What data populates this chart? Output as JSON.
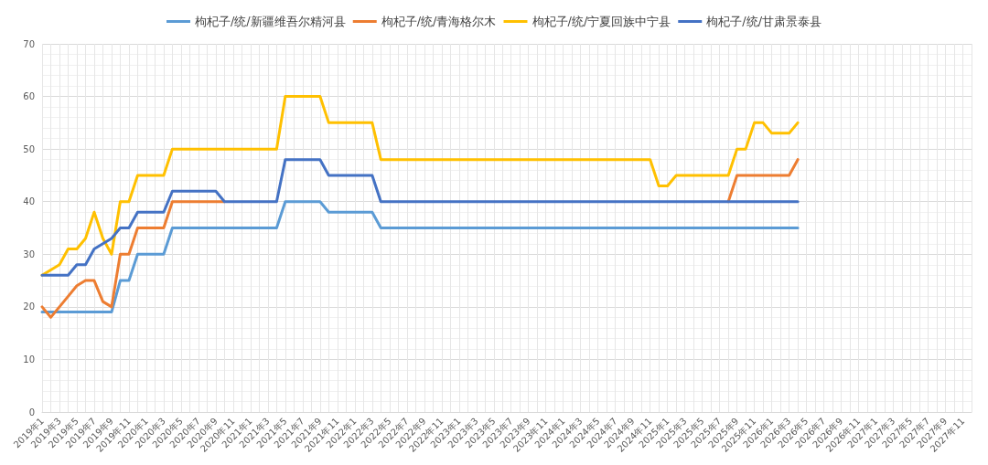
{
  "chart_data": {
    "type": "line",
    "categories": [
      "2019年1",
      null,
      "2019年3",
      null,
      "2019年5",
      null,
      "2019年7",
      null,
      "2019年9",
      null,
      "2019年11",
      null,
      "2020年1",
      null,
      "2020年3",
      null,
      "2020年5",
      null,
      "2020年7",
      null,
      "2020年9",
      null,
      "2020年11",
      null,
      "2021年1",
      null,
      "2021年3",
      null,
      "2021年5",
      null,
      "2021年7",
      null,
      "2021年9",
      null,
      "2021年11",
      null,
      "2022年1",
      null,
      "2022年3",
      null,
      "2022年5",
      null,
      "2022年7",
      null,
      "2022年9",
      null,
      "2022年11",
      null,
      "2023年1",
      null,
      "2023年3",
      null,
      "2023年5",
      null,
      "2023年7",
      null,
      "2023年9",
      null,
      "2023年11",
      null,
      "2024年1",
      null,
      "2024年3",
      null,
      "2024年5",
      null,
      "2024年7",
      null,
      "2024年9",
      null,
      "2024年11",
      null,
      "2025年1",
      null,
      "2025年3",
      null,
      "2025年5",
      null,
      "2025年7",
      null,
      "2025年9",
      null,
      "2025年11",
      null,
      "2026年1",
      null,
      "2026年3",
      null,
      "2026年5",
      null,
      "2026年7",
      null,
      "2026年9",
      null,
      "2026年11",
      null,
      "2027年1",
      null,
      "2027年3",
      null,
      "2027年5",
      null,
      "2027年7",
      null,
      "2027年9",
      null,
      "2027年11",
      null
    ],
    "series": [
      {
        "name": "枸杞子/统/新疆维吾尔精河县",
        "color": "#5b9bd5",
        "values": [
          19,
          19,
          19,
          19,
          19,
          19,
          19,
          19,
          19,
          25,
          25,
          30,
          30,
          30,
          30,
          35,
          35,
          35,
          35,
          35,
          35,
          35,
          35,
          35,
          35,
          35,
          35,
          35,
          40,
          40,
          40,
          40,
          40,
          38,
          38,
          38,
          38,
          38,
          38,
          35,
          35,
          35,
          35,
          35,
          35,
          35,
          35,
          35,
          35,
          35,
          35,
          35,
          35,
          35,
          35,
          35,
          35,
          35,
          35,
          35,
          35,
          35,
          35,
          35,
          35,
          35,
          35,
          35,
          35,
          35,
          35,
          35,
          35,
          35,
          35,
          35,
          35,
          35,
          35,
          35,
          35,
          35,
          35,
          35,
          35,
          35,
          35,
          35,
          null,
          null,
          null,
          null,
          null,
          null,
          null,
          null,
          null,
          null,
          null,
          null,
          null,
          null,
          null,
          null,
          null,
          null,
          null,
          null
        ]
      },
      {
        "name": "枸杞子/统/青海格尔木",
        "color": "#ed7d31",
        "values": [
          20,
          18,
          20,
          22,
          24,
          25,
          25,
          21,
          20,
          30,
          30,
          35,
          35,
          35,
          35,
          40,
          40,
          40,
          40,
          40,
          40,
          40,
          null,
          null,
          null,
          null,
          null,
          null,
          null,
          null,
          null,
          null,
          null,
          null,
          null,
          null,
          null,
          null,
          null,
          null,
          null,
          null,
          null,
          null,
          null,
          null,
          null,
          null,
          null,
          null,
          null,
          null,
          null,
          null,
          null,
          null,
          null,
          null,
          null,
          null,
          null,
          null,
          null,
          null,
          null,
          null,
          null,
          null,
          null,
          null,
          null,
          null,
          null,
          null,
          null,
          null,
          null,
          null,
          null,
          40,
          45,
          45,
          45,
          45,
          45,
          45,
          45,
          48,
          null,
          null,
          null,
          null,
          null,
          null,
          null,
          null,
          null,
          null,
          null,
          null,
          null,
          null,
          null,
          null,
          null,
          null,
          null,
          null
        ]
      },
      {
        "name": "枸杞子/统/宁夏回族中宁县",
        "color": "#ffc000",
        "values": [
          26,
          27,
          28,
          31,
          31,
          33,
          38,
          33,
          30,
          40,
          40,
          45,
          45,
          45,
          45,
          50,
          50,
          50,
          50,
          50,
          50,
          50,
          50,
          50,
          50,
          50,
          50,
          50,
          60,
          60,
          60,
          60,
          60,
          55,
          55,
          55,
          55,
          55,
          55,
          48,
          48,
          48,
          48,
          48,
          48,
          48,
          48,
          48,
          48,
          48,
          48,
          48,
          48,
          48,
          48,
          48,
          48,
          48,
          48,
          48,
          48,
          48,
          48,
          48,
          48,
          48,
          48,
          48,
          48,
          48,
          48,
          43,
          43,
          45,
          45,
          45,
          45,
          45,
          45,
          45,
          50,
          50,
          55,
          55,
          53,
          53,
          53,
          55,
          null,
          null,
          null,
          null,
          null,
          null,
          null,
          null,
          null,
          null,
          null,
          null,
          null,
          null,
          null,
          null,
          null,
          null,
          null,
          null
        ]
      },
      {
        "name": "枸杞子/统/甘肃景泰县",
        "color": "#4472c4",
        "values": [
          26,
          26,
          26,
          26,
          28,
          28,
          31,
          32,
          33,
          35,
          35,
          38,
          38,
          38,
          38,
          42,
          42,
          42,
          42,
          42,
          42,
          40,
          40,
          40,
          40,
          40,
          40,
          40,
          48,
          48,
          48,
          48,
          48,
          45,
          45,
          45,
          45,
          45,
          45,
          40,
          40,
          40,
          40,
          40,
          40,
          40,
          40,
          40,
          40,
          40,
          40,
          40,
          40,
          40,
          40,
          40,
          40,
          40,
          40,
          40,
          40,
          40,
          40,
          40,
          40,
          40,
          40,
          40,
          40,
          40,
          40,
          40,
          40,
          40,
          40,
          40,
          40,
          40,
          40,
          40,
          40,
          40,
          40,
          40,
          40,
          40,
          40,
          40,
          null,
          null,
          null,
          null,
          null,
          null,
          null,
          null,
          null,
          null,
          null,
          null,
          null,
          null,
          null,
          null,
          null,
          null,
          null,
          null
        ]
      }
    ],
    "ylim": [
      0,
      70
    ],
    "yticks": [
      0,
      10,
      20,
      30,
      40,
      50,
      60,
      70
    ],
    "grid": true,
    "legend": "top",
    "marker": "none",
    "line_style": "solid"
  }
}
